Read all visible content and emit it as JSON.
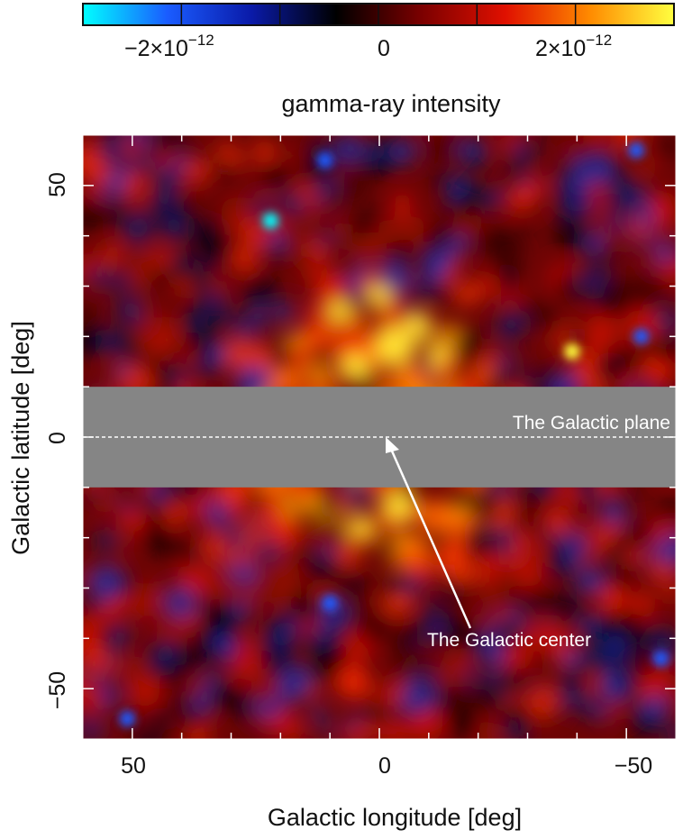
{
  "chart_data": {
    "type": "heatmap",
    "title": "",
    "colorbar": {
      "label": "gamma-ray intensity",
      "range": [
        -3e-12,
        3e-12
      ],
      "tick_labels": [
        "−2×10",
        "0",
        "2×10"
      ],
      "tick_exponent": "−12",
      "tick_values": [
        -2e-12,
        0,
        2e-12
      ],
      "colors": [
        "#00ffff",
        "#1a5cff",
        "#0a1aa8",
        "#000000",
        "#7a0000",
        "#e01000",
        "#ff8a00",
        "#ffff40"
      ]
    },
    "xlabel": "Galactic longitude [deg]",
    "ylabel": "Galactic latitude [deg]",
    "xlim": [
      60,
      -60
    ],
    "ylim": [
      -60,
      60
    ],
    "x_tick_labels": [
      "50",
      "0",
      "−50"
    ],
    "x_tick_values": [
      50,
      0,
      -50
    ],
    "y_tick_labels": [
      "50",
      "0",
      "−50"
    ],
    "y_tick_values": [
      50,
      0,
      -50
    ],
    "masked_band": {
      "latitude_range": [
        -10,
        10
      ],
      "color": "#858585"
    },
    "annotations": {
      "plane_label": "The Galactic plane",
      "center_label": "The Galactic center"
    },
    "sources": [
      {
        "l": 22,
        "b": 43,
        "intensity": -3e-12
      },
      {
        "l": 11,
        "b": 55,
        "intensity": -2e-12
      },
      {
        "l": -52,
        "b": 57,
        "intensity": -2.4e-12
      },
      {
        "l": -53,
        "b": 20,
        "intensity": -2.2e-12
      },
      {
        "l": -57,
        "b": -44,
        "intensity": -2.2e-12
      },
      {
        "l": 51,
        "b": -56,
        "intensity": -2e-12
      },
      {
        "l": -39,
        "b": 17,
        "intensity": 3e-12
      },
      {
        "l": 10,
        "b": -33,
        "intensity": -1.8e-12
      }
    ]
  }
}
